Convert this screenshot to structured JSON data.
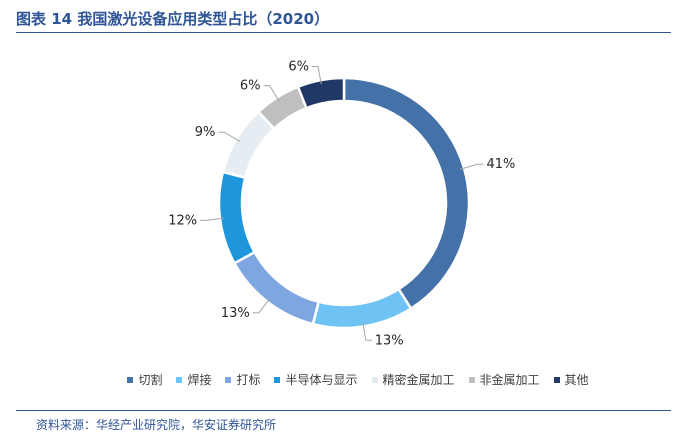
{
  "title": "图表 14 我国激光设备应用类型占比（2020）",
  "source": "资料来源：华经产业研究院，华安证券研究所",
  "chart_data": {
    "type": "pie",
    "style": "donut",
    "title": "图表 14 我国激光设备应用类型占比（2020）",
    "categories": [
      "切割",
      "焊接",
      "打标",
      "半导体与显示",
      "精密金属加工",
      "非金属加工",
      "其他"
    ],
    "values": [
      41,
      13,
      13,
      12,
      9,
      6,
      6
    ],
    "labels": [
      "41%",
      "13%",
      "13%",
      "12%",
      "9%",
      "6%",
      "6%"
    ],
    "colors": [
      "#4472a8",
      "#6ec3f4",
      "#7ea6e0",
      "#1e96dc",
      "#e6edf2",
      "#bfbfbf",
      "#203864"
    ],
    "legend_position": "bottom"
  }
}
